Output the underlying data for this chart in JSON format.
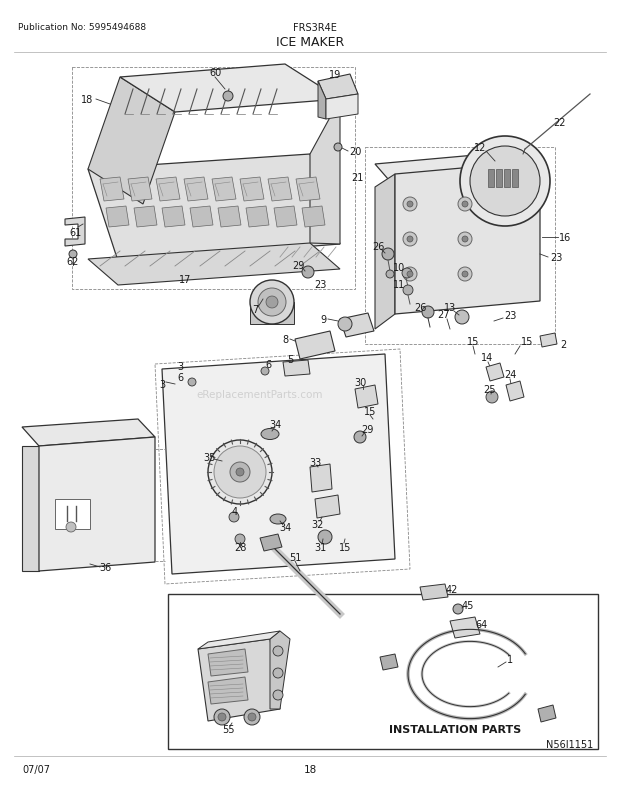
{
  "title": "ICE MAKER",
  "pub_no": "Publication No: 5995494688",
  "model": "FRS3R4E",
  "diagram_id": "N56I1151",
  "page": "18",
  "date": "07/07",
  "bg_color": "#ffffff",
  "text_color": "#1a1a1a",
  "line_color": "#333333",
  "gray1": "#c8c8c8",
  "gray2": "#b0b0b0",
  "gray3": "#888888",
  "gray4": "#d8d8d8",
  "gray5": "#e8e8e8",
  "installation_text": "INSTALLATION PARTS",
  "watermark": "eReplacementParts.com"
}
